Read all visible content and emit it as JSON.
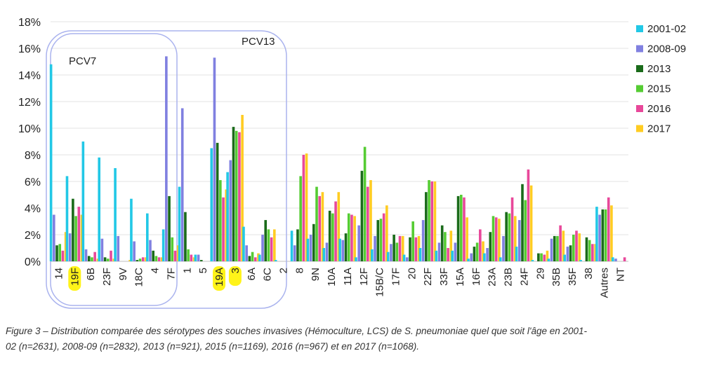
{
  "chart_data": {
    "type": "bar",
    "y_ticks": [
      "0%",
      "2%",
      "4%",
      "6%",
      "8%",
      "10%",
      "12%",
      "14%",
      "16%",
      "18%"
    ],
    "ylim": [
      0,
      18
    ],
    "grid": true,
    "legend_position": "top-right",
    "categories": [
      "14",
      "19F",
      "6B",
      "23F",
      "9V",
      "18C",
      "4",
      "7F",
      "1",
      "5",
      "19A",
      "3",
      "6A",
      "6C",
      "2",
      "8",
      "9N",
      "10A",
      "11A",
      "12F",
      "15B/C",
      "17F",
      "20",
      "22F",
      "33F",
      "15A",
      "16F",
      "23A",
      "23B",
      "24F",
      "29",
      "35B",
      "35F",
      "38",
      "Autres",
      "NT"
    ],
    "series": [
      {
        "name": "2001-02",
        "color": "#22c8e6",
        "values": [
          14.8,
          6.4,
          9.0,
          7.8,
          7.0,
          4.7,
          3.6,
          2.4,
          5.6,
          0.5,
          8.5,
          6.7,
          2.6,
          0.5,
          0.1,
          2.3,
          1.7,
          1.0,
          1.7,
          0.3,
          0.9,
          0.7,
          0.5,
          1.0,
          0.8,
          0.8,
          0.2,
          0.6,
          0.3,
          1.1,
          0.1,
          0.2,
          0.5,
          0.1,
          4.1,
          0.3
        ]
      },
      {
        "name": "2008-09",
        "color": "#8080e0",
        "values": [
          3.5,
          2.1,
          0.9,
          1.7,
          1.9,
          1.5,
          1.6,
          15.4,
          11.5,
          0.5,
          15.3,
          7.6,
          1.2,
          2.0,
          0.0,
          1.2,
          2.0,
          1.4,
          1.6,
          2.7,
          1.9,
          1.3,
          0.3,
          3.1,
          1.4,
          1.4,
          0.6,
          1.0,
          1.9,
          3.1,
          0.0,
          1.7,
          1.1,
          0.0,
          3.5,
          0.2
        ]
      },
      {
        "name": "2013",
        "color": "#1a6b1a",
        "values": [
          1.2,
          4.7,
          0.4,
          0.3,
          0.0,
          0.1,
          0.8,
          4.9,
          3.7,
          0.1,
          8.9,
          10.1,
          0.4,
          3.1,
          0.0,
          2.4,
          2.8,
          3.8,
          2.1,
          6.8,
          3.1,
          2.0,
          1.8,
          5.2,
          2.7,
          4.9,
          1.1,
          2.2,
          3.7,
          5.8,
          0.6,
          1.9,
          1.2,
          1.8,
          3.9,
          0.0
        ]
      },
      {
        "name": "2015",
        "color": "#55cc33",
        "values": [
          1.3,
          3.4,
          0.3,
          0.2,
          0.0,
          0.2,
          0.4,
          1.8,
          0.9,
          0.0,
          6.1,
          9.8,
          0.7,
          2.4,
          0.0,
          6.4,
          5.6,
          3.6,
          3.6,
          8.6,
          3.2,
          1.4,
          3.0,
          6.1,
          2.2,
          5.0,
          1.4,
          3.4,
          3.6,
          4.6,
          0.6,
          1.9,
          2.0,
          1.6,
          3.9,
          0.0
        ]
      },
      {
        "name": "2016",
        "color": "#e8489a",
        "values": [
          0.8,
          4.1,
          0.7,
          0.8,
          0.0,
          0.3,
          0.3,
          0.8,
          0.5,
          0.0,
          4.8,
          9.7,
          0.3,
          1.8,
          0.0,
          8.0,
          4.9,
          4.5,
          3.5,
          5.6,
          3.6,
          1.9,
          1.8,
          6.0,
          1.0,
          4.8,
          2.4,
          3.3,
          4.8,
          6.9,
          0.5,
          2.7,
          2.3,
          1.3,
          4.8,
          0.3
        ]
      },
      {
        "name": "2017",
        "color": "#ffcc22",
        "values": [
          2.2,
          3.5,
          0.2,
          0.2,
          0.1,
          0.3,
          0.3,
          1.2,
          0.3,
          0.0,
          5.4,
          11.0,
          0.6,
          2.4,
          0.0,
          8.1,
          5.2,
          5.2,
          3.4,
          6.1,
          4.2,
          1.9,
          1.9,
          6.0,
          2.3,
          3.3,
          1.5,
          3.2,
          3.4,
          5.7,
          0.8,
          2.3,
          2.1,
          1.3,
          4.2,
          0.0
        ]
      }
    ],
    "group_labels": [
      "PCV7",
      "PCV13"
    ],
    "highlighted_categories": [
      "19F",
      "19A",
      "3"
    ]
  },
  "caption": {
    "line1": "Figure 3 – Distribution comparée des sérotypes des souches invasives (Hémoculture, LCS) de S. pneumoniae quel que soit l'âge en 2001-",
    "line2": "02 (n=2631), 2008-09 (n=2832), 2013 (n=921), 2015 (n=1169), 2016 (n=967) et en 2017 (n=1068)."
  }
}
